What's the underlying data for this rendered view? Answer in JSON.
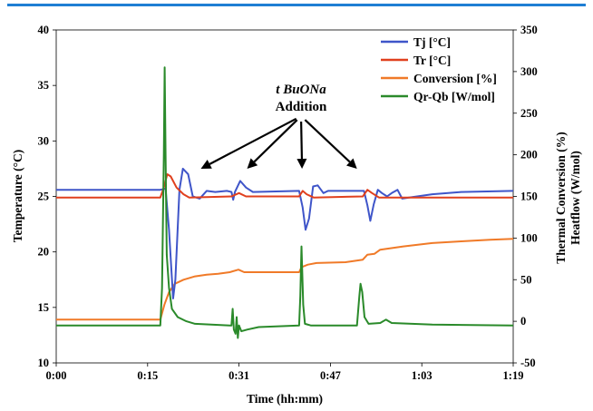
{
  "chart_data": {
    "type": "line",
    "title": "",
    "xlabel": "Time (hh:mm)",
    "ylabel_left": "Temperature (°C)",
    "ylabel_right": [
      "Thermal Conversion (%)",
      "Heatflow (W/mol)"
    ],
    "x_ticks": [
      "0:00",
      "0:15",
      "0:31",
      "0:47",
      "1:03",
      "1:19"
    ],
    "x_range_minutes": [
      0,
      79
    ],
    "y_left": {
      "range": [
        10,
        40
      ],
      "ticks": [
        10,
        15,
        20,
        25,
        30,
        35,
        40
      ]
    },
    "y_right": {
      "range": [
        -50,
        350
      ],
      "ticks": [
        -50,
        0,
        50,
        100,
        150,
        200,
        250,
        300,
        350
      ]
    },
    "grid": false,
    "legend_position": "top-right",
    "annotation": {
      "line1": "t BuONa",
      "line2": "Addition",
      "arrow_targets_minutes": [
        25,
        33,
        42.5,
        52
      ]
    },
    "colors": {
      "Tj": "#3f55c9",
      "Tr": "#e0401e",
      "Conversion": "#f07a28",
      "Heatflow": "#2a8a2a",
      "accent_rule": "#1f7fd4"
    },
    "series": [
      {
        "name": "Tj [°C]",
        "axis": "left",
        "color_key": "Tj",
        "points": [
          [
            0,
            25.6
          ],
          [
            18,
            25.6
          ],
          [
            18.9,
            25.7
          ],
          [
            19.5,
            22.0
          ],
          [
            20.2,
            15.8
          ],
          [
            20.6,
            17.5
          ],
          [
            21.3,
            25.6
          ],
          [
            21.9,
            27.5
          ],
          [
            22.8,
            27.0
          ],
          [
            23.6,
            25.0
          ],
          [
            24.8,
            24.8
          ],
          [
            26.0,
            25.5
          ],
          [
            27.5,
            25.4
          ],
          [
            29.5,
            25.5
          ],
          [
            30.3,
            25.4
          ],
          [
            30.6,
            24.7
          ],
          [
            30.9,
            25.4
          ],
          [
            31.8,
            26.4
          ],
          [
            32.8,
            25.8
          ],
          [
            34.0,
            25.4
          ],
          [
            42.0,
            25.5
          ],
          [
            42.6,
            24.0
          ],
          [
            43.1,
            22.0
          ],
          [
            43.7,
            23.0
          ],
          [
            44.4,
            25.9
          ],
          [
            45.2,
            26.0
          ],
          [
            46.2,
            25.3
          ],
          [
            47.0,
            25.5
          ],
          [
            53.2,
            25.5
          ],
          [
            53.8,
            24.2
          ],
          [
            54.3,
            22.8
          ],
          [
            54.9,
            24.3
          ],
          [
            55.6,
            25.6
          ],
          [
            56.3,
            25.3
          ],
          [
            57.2,
            25.0
          ],
          [
            58.0,
            25.3
          ],
          [
            59.0,
            25.6
          ],
          [
            59.8,
            24.8
          ],
          [
            61.0,
            24.9
          ],
          [
            65.0,
            25.2
          ],
          [
            70.0,
            25.4
          ],
          [
            79.0,
            25.5
          ]
        ]
      },
      {
        "name": "Tr [°C]",
        "axis": "left",
        "color_key": "Tr",
        "points": [
          [
            0,
            24.9
          ],
          [
            18,
            24.9
          ],
          [
            18.6,
            25.8
          ],
          [
            19.2,
            27.0
          ],
          [
            19.8,
            26.8
          ],
          [
            20.8,
            25.8
          ],
          [
            22.0,
            25.2
          ],
          [
            23.0,
            24.9
          ],
          [
            30.3,
            25.0
          ],
          [
            30.7,
            25.1
          ],
          [
            31.6,
            25.3
          ],
          [
            32.8,
            25.0
          ],
          [
            42.0,
            25.0
          ],
          [
            42.6,
            25.5
          ],
          [
            43.3,
            25.2
          ],
          [
            44.5,
            24.9
          ],
          [
            53.0,
            25.0
          ],
          [
            53.8,
            25.6
          ],
          [
            54.6,
            25.3
          ],
          [
            55.8,
            24.9
          ],
          [
            79.0,
            24.9
          ]
        ]
      },
      {
        "name": "Conversion [%]",
        "axis": "right",
        "color_key": "Conversion",
        "points": [
          [
            0,
            2
          ],
          [
            18,
            2
          ],
          [
            18.7,
            20
          ],
          [
            19.5,
            35
          ],
          [
            20.5,
            45
          ],
          [
            22.0,
            50
          ],
          [
            24.0,
            54
          ],
          [
            26.0,
            56
          ],
          [
            28.0,
            57
          ],
          [
            30.0,
            59
          ],
          [
            31.5,
            62
          ],
          [
            32.5,
            59
          ],
          [
            42.0,
            59
          ],
          [
            42.4,
            65
          ],
          [
            43.5,
            68
          ],
          [
            45.0,
            70
          ],
          [
            50.0,
            71
          ],
          [
            53.0,
            74
          ],
          [
            53.8,
            80
          ],
          [
            55.0,
            81
          ],
          [
            56.0,
            86
          ],
          [
            60.0,
            90
          ],
          [
            65.0,
            94
          ],
          [
            70.0,
            96
          ],
          [
            75.0,
            98
          ],
          [
            79.0,
            99
          ]
        ]
      },
      {
        "name": "Qr-Qb [W/mol]",
        "axis": "right",
        "color_key": "Heatflow",
        "points": [
          [
            0,
            -5
          ],
          [
            18,
            -5
          ],
          [
            18.3,
            40
          ],
          [
            18.6,
            200
          ],
          [
            18.75,
            305
          ],
          [
            18.9,
            200
          ],
          [
            19.1,
            80
          ],
          [
            19.5,
            40
          ],
          [
            20.0,
            15
          ],
          [
            21.0,
            5
          ],
          [
            22.5,
            0
          ],
          [
            24.0,
            -3
          ],
          [
            30.0,
            -5
          ],
          [
            30.3,
            -5
          ],
          [
            30.5,
            15
          ],
          [
            30.7,
            -10
          ],
          [
            31.0,
            -15
          ],
          [
            31.2,
            5
          ],
          [
            31.4,
            -20
          ],
          [
            31.6,
            -5
          ],
          [
            32.0,
            -12
          ],
          [
            33.0,
            -10
          ],
          [
            35.0,
            -7
          ],
          [
            42.0,
            -5
          ],
          [
            42.2,
            30
          ],
          [
            42.4,
            90
          ],
          [
            42.7,
            20
          ],
          [
            43.0,
            -3
          ],
          [
            44.0,
            -5
          ],
          [
            52.0,
            -5
          ],
          [
            52.4,
            30
          ],
          [
            52.6,
            45
          ],
          [
            52.9,
            35
          ],
          [
            53.3,
            5
          ],
          [
            54.0,
            -3
          ],
          [
            56.0,
            -2
          ],
          [
            57.0,
            2
          ],
          [
            58.0,
            -2
          ],
          [
            65.0,
            -4
          ],
          [
            79.0,
            -5
          ]
        ]
      }
    ]
  }
}
